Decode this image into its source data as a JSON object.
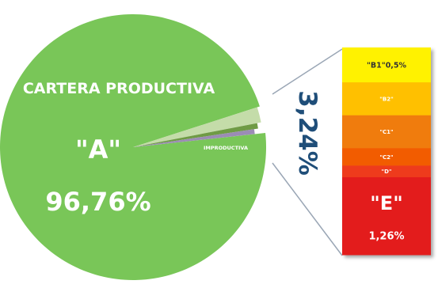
{
  "chart_data": {
    "type": "pie",
    "title": "",
    "main_slices": [
      {
        "name": "CARTERA PRODUCTIVA",
        "value": 96.76,
        "color": "#79C658"
      },
      {
        "name": "",
        "value": 1.9,
        "color": "#C4DCA9"
      },
      {
        "name": "",
        "value": 0.7,
        "color": "#6F9B45"
      },
      {
        "name": "IMPRODUCTIVA",
        "value": 0.64,
        "color": "#9B8CB5"
      }
    ],
    "main_labels": {
      "title": "CARTERA PRODUCTIVA",
      "grade": "\"A\"",
      "percent": "96,76%",
      "improductiva": "IMPRODUCTIVA"
    },
    "breakdown": {
      "total_label": "3,24%",
      "total_color": "#1F4E79",
      "segments": [
        {
          "label": "\"B1\"0,5%",
          "color": "#FFF200",
          "text_color": "#333333",
          "weight": 0.9
        },
        {
          "label": "\"B2\"",
          "color": "#FFC000",
          "text_color": "#ffffff",
          "weight": 0.85
        },
        {
          "label": "\"C1\"",
          "color": "#F07C10",
          "text_color": "#ffffff",
          "weight": 0.85
        },
        {
          "label": "\"C2\"",
          "color": "#F25C05",
          "text_color": "#ffffff",
          "weight": 0.45
        },
        {
          "label": "\"D\"",
          "color": "#EE3A1B",
          "text_color": "#ffffff",
          "weight": 0.3
        },
        {
          "label": "\"E\"",
          "color": "#E31B1B",
          "text_color": "#ffffff",
          "weight": 2.0,
          "sub_label": "1,26%"
        }
      ]
    }
  }
}
